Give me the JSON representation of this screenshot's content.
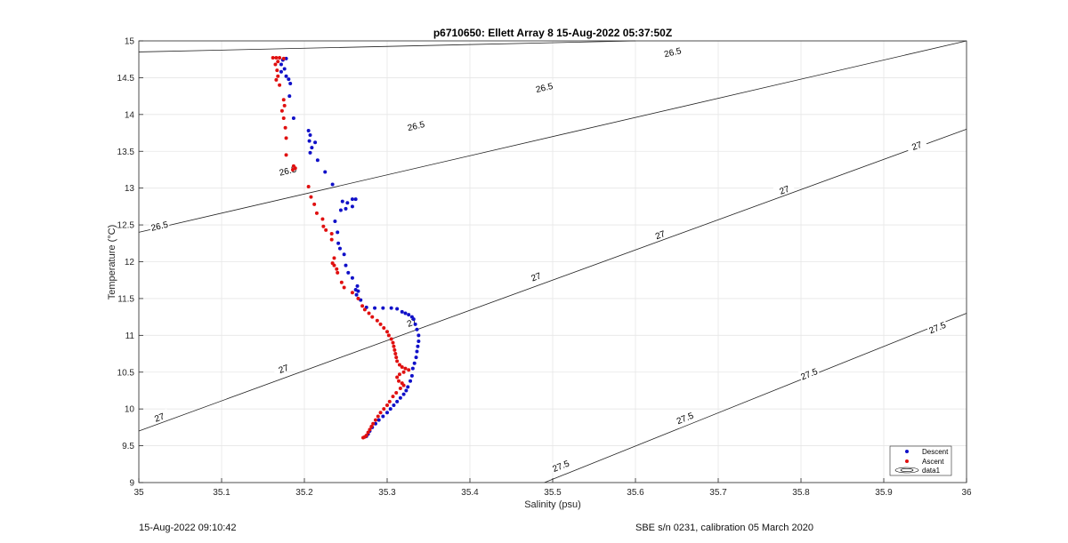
{
  "chart_data": {
    "type": "scatter",
    "title": "p6710650: Ellett Array 8 15-Aug-2022 05:37:50Z",
    "xlabel": "Salinity (psu)",
    "ylabel": "Temperature (°C)",
    "xlim": [
      35,
      36
    ],
    "ylim": [
      9,
      15
    ],
    "xticks": [
      "35",
      "35.1",
      "35.2",
      "35.3",
      "35.4",
      "35.5",
      "35.6",
      "35.7",
      "35.8",
      "35.9",
      "36"
    ],
    "yticks": [
      "9",
      "9.5",
      "10",
      "10.5",
      "11",
      "11.5",
      "12",
      "12.5",
      "13",
      "13.5",
      "14",
      "14.5",
      "15"
    ],
    "grid": true,
    "legend_position": "bottom-right",
    "legend": [
      "Descent",
      "Ascent",
      "data1"
    ],
    "contours": [
      {
        "level": "26.5",
        "points": [
          [
            35.0,
            14.85
          ],
          [
            35.6,
            15.0
          ],
          [
            35.0,
            12.4
          ],
          [
            36.0,
            15.0
          ]
        ],
        "labels": [
          [
            35.645,
            14.84
          ],
          [
            35.49,
            14.36
          ],
          [
            35.335,
            13.84
          ],
          [
            35.18,
            13.23
          ],
          [
            35.025,
            12.48
          ]
        ]
      },
      {
        "level": "27",
        "points": [
          [
            35.0,
            9.7
          ],
          [
            36.0,
            13.8
          ]
        ],
        "labels": [
          [
            35.94,
            13.57
          ],
          [
            35.78,
            12.97
          ],
          [
            35.63,
            12.36
          ],
          [
            35.48,
            11.79
          ],
          [
            35.33,
            11.17
          ],
          [
            35.175,
            10.54
          ],
          [
            35.025,
            9.88
          ]
        ]
      },
      {
        "level": "27.5",
        "points": [
          [
            35.49,
            9.0
          ],
          [
            36.0,
            11.3
          ]
        ],
        "labels": [
          [
            35.965,
            11.1
          ],
          [
            35.81,
            10.47
          ],
          [
            35.66,
            9.87
          ],
          [
            35.51,
            9.22
          ]
        ]
      }
    ],
    "series": [
      {
        "name": "Descent",
        "color": "#1010c8",
        "points": [
          [
            35.178,
            14.76
          ],
          [
            35.174,
            14.74
          ],
          [
            35.172,
            14.68
          ],
          [
            35.176,
            14.62
          ],
          [
            35.172,
            14.58
          ],
          [
            35.178,
            14.52
          ],
          [
            35.181,
            14.48
          ],
          [
            35.183,
            14.42
          ],
          [
            35.182,
            14.25
          ],
          [
            35.187,
            13.95
          ],
          [
            35.205,
            13.78
          ],
          [
            35.207,
            13.72
          ],
          [
            35.206,
            13.64
          ],
          [
            35.213,
            13.62
          ],
          [
            35.209,
            13.55
          ],
          [
            35.207,
            13.48
          ],
          [
            35.216,
            13.38
          ],
          [
            35.225,
            13.22
          ],
          [
            35.234,
            13.05
          ],
          [
            35.246,
            12.82
          ],
          [
            35.252,
            12.8
          ],
          [
            35.258,
            12.85
          ],
          [
            35.262,
            12.85
          ],
          [
            35.258,
            12.75
          ],
          [
            35.25,
            12.72
          ],
          [
            35.244,
            12.7
          ],
          [
            35.237,
            12.55
          ],
          [
            35.24,
            12.4
          ],
          [
            35.241,
            12.25
          ],
          [
            35.243,
            12.18
          ],
          [
            35.248,
            12.1
          ],
          [
            35.25,
            11.95
          ],
          [
            35.253,
            11.85
          ],
          [
            35.258,
            11.78
          ],
          [
            35.264,
            11.67
          ],
          [
            35.262,
            11.62
          ],
          [
            35.265,
            11.6
          ],
          [
            35.263,
            11.55
          ],
          [
            35.268,
            11.48
          ],
          [
            35.275,
            11.38
          ],
          [
            35.285,
            11.37
          ],
          [
            35.295,
            11.37
          ],
          [
            35.305,
            11.37
          ],
          [
            35.312,
            11.36
          ],
          [
            35.318,
            11.32
          ],
          [
            35.322,
            11.3
          ],
          [
            35.326,
            11.28
          ],
          [
            35.33,
            11.25
          ],
          [
            35.332,
            11.22
          ],
          [
            35.334,
            11.15
          ],
          [
            35.336,
            11.08
          ],
          [
            35.338,
            11.0
          ],
          [
            35.338,
            10.92
          ],
          [
            35.337,
            10.85
          ],
          [
            35.336,
            10.78
          ],
          [
            35.335,
            10.7
          ],
          [
            35.333,
            10.62
          ],
          [
            35.331,
            10.55
          ],
          [
            35.33,
            10.45
          ],
          [
            35.328,
            10.38
          ],
          [
            35.325,
            10.3
          ],
          [
            35.323,
            10.25
          ],
          [
            35.32,
            10.2
          ],
          [
            35.316,
            10.15
          ],
          [
            35.312,
            10.1
          ],
          [
            35.308,
            10.05
          ],
          [
            35.304,
            10.0
          ],
          [
            35.3,
            9.95
          ],
          [
            35.295,
            9.9
          ],
          [
            35.29,
            9.85
          ],
          [
            35.286,
            9.8
          ],
          [
            35.282,
            9.75
          ],
          [
            35.279,
            9.7
          ],
          [
            35.277,
            9.66
          ],
          [
            35.275,
            9.63
          ]
        ]
      },
      {
        "name": "Ascent",
        "color": "#e01010",
        "points": [
          [
            35.162,
            14.77
          ],
          [
            35.166,
            14.77
          ],
          [
            35.17,
            14.77
          ],
          [
            35.175,
            14.76
          ],
          [
            35.168,
            14.72
          ],
          [
            35.165,
            14.68
          ],
          [
            35.167,
            14.6
          ],
          [
            35.168,
            14.52
          ],
          [
            35.166,
            14.47
          ],
          [
            35.17,
            14.4
          ],
          [
            35.175,
            14.2
          ],
          [
            35.176,
            14.12
          ],
          [
            35.173,
            14.05
          ],
          [
            35.175,
            13.95
          ],
          [
            35.177,
            13.82
          ],
          [
            35.178,
            13.68
          ],
          [
            35.178,
            13.45
          ],
          [
            35.187,
            13.3
          ],
          [
            35.189,
            13.27
          ],
          [
            35.186,
            13.25
          ],
          [
            35.205,
            13.02
          ],
          [
            35.208,
            12.88
          ],
          [
            35.212,
            12.78
          ],
          [
            35.215,
            12.66
          ],
          [
            35.222,
            12.58
          ],
          [
            35.223,
            12.48
          ],
          [
            35.226,
            12.43
          ],
          [
            35.233,
            12.38
          ],
          [
            35.233,
            12.3
          ],
          [
            35.236,
            12.05
          ],
          [
            35.234,
            11.98
          ],
          [
            35.236,
            11.95
          ],
          [
            35.239,
            11.9
          ],
          [
            35.24,
            11.85
          ],
          [
            35.245,
            11.72
          ],
          [
            35.248,
            11.65
          ],
          [
            35.258,
            11.58
          ],
          [
            35.265,
            11.5
          ],
          [
            35.27,
            11.4
          ],
          [
            35.273,
            11.35
          ],
          [
            35.278,
            11.3
          ],
          [
            35.282,
            11.25
          ],
          [
            35.288,
            11.2
          ],
          [
            35.292,
            11.15
          ],
          [
            35.296,
            11.1
          ],
          [
            35.3,
            11.05
          ],
          [
            35.302,
            11.0
          ],
          [
            35.305,
            10.95
          ],
          [
            35.307,
            10.9
          ],
          [
            35.308,
            10.85
          ],
          [
            35.309,
            10.8
          ],
          [
            35.31,
            10.75
          ],
          [
            35.311,
            10.7
          ],
          [
            35.312,
            10.65
          ],
          [
            35.315,
            10.6
          ],
          [
            35.318,
            10.57
          ],
          [
            35.322,
            10.55
          ],
          [
            35.326,
            10.53
          ],
          [
            35.32,
            10.5
          ],
          [
            35.315,
            10.47
          ],
          [
            35.312,
            10.43
          ],
          [
            35.314,
            10.38
          ],
          [
            35.318,
            10.35
          ],
          [
            35.32,
            10.32
          ],
          [
            35.316,
            10.28
          ],
          [
            35.311,
            10.22
          ],
          [
            35.307,
            10.17
          ],
          [
            35.303,
            10.1
          ],
          [
            35.3,
            10.05
          ],
          [
            35.296,
            10.0
          ],
          [
            35.292,
            9.95
          ],
          [
            35.289,
            9.9
          ],
          [
            35.286,
            9.85
          ],
          [
            35.283,
            9.8
          ],
          [
            35.281,
            9.76
          ],
          [
            35.279,
            9.72
          ],
          [
            35.277,
            9.68
          ],
          [
            35.275,
            9.64
          ],
          [
            35.273,
            9.62
          ],
          [
            35.271,
            9.61
          ]
        ]
      }
    ]
  },
  "footer": {
    "left": "15-Aug-2022 09:10:42",
    "right": "SBE s/n 0231, calibration 05 March 2020"
  }
}
